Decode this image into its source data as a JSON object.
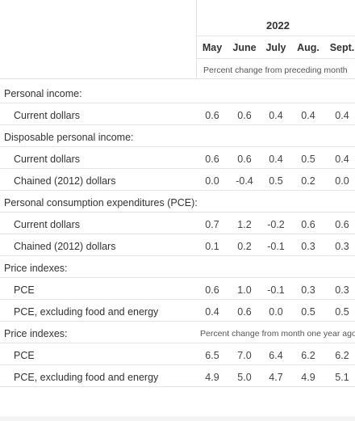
{
  "year": "2022",
  "months": [
    "May",
    "June",
    "July",
    "Aug.",
    "Sept."
  ],
  "unit_month": "Percent change from preceding month",
  "unit_year": "Percent change from month one year ago",
  "rows": [
    {
      "label": "Personal income:",
      "indent": false,
      "values": []
    },
    {
      "label": "Current dollars",
      "indent": true,
      "values": [
        "0.6",
        "0.6",
        "0.4",
        "0.4",
        "0.4"
      ]
    },
    {
      "label": "Disposable personal income:",
      "indent": false,
      "values": []
    },
    {
      "label": "Current dollars",
      "indent": true,
      "values": [
        "0.6",
        "0.6",
        "0.4",
        "0.5",
        "0.4"
      ]
    },
    {
      "label": "Chained (2012) dollars",
      "indent": true,
      "values": [
        "0.0",
        "-0.4",
        "0.5",
        "0.2",
        "0.0"
      ]
    },
    {
      "label": "Personal consumption expenditures (PCE):",
      "indent": false,
      "values": []
    },
    {
      "label": "Current dollars",
      "indent": true,
      "values": [
        "0.7",
        "1.2",
        "-0.2",
        "0.6",
        "0.6"
      ]
    },
    {
      "label": "Chained (2012) dollars",
      "indent": true,
      "values": [
        "0.1",
        "0.2",
        "-0.1",
        "0.3",
        "0.3"
      ]
    },
    {
      "label": "Price indexes:",
      "indent": false,
      "values": []
    },
    {
      "label": "PCE",
      "indent": true,
      "values": [
        "0.6",
        "1.0",
        "-0.1",
        "0.3",
        "0.3"
      ]
    },
    {
      "label": "PCE, excluding food and energy",
      "indent": true,
      "values": [
        "0.4",
        "0.6",
        "0.0",
        "0.5",
        "0.5"
      ]
    },
    {
      "label": "Price indexes:",
      "indent": false,
      "values": []
    },
    {
      "label": "PCE",
      "indent": true,
      "values": [
        "6.5",
        "7.0",
        "6.4",
        "6.2",
        "6.2"
      ]
    },
    {
      "label": "PCE, excluding food and energy",
      "indent": true,
      "values": [
        "4.9",
        "5.0",
        "4.7",
        "4.9",
        "5.1"
      ]
    }
  ]
}
